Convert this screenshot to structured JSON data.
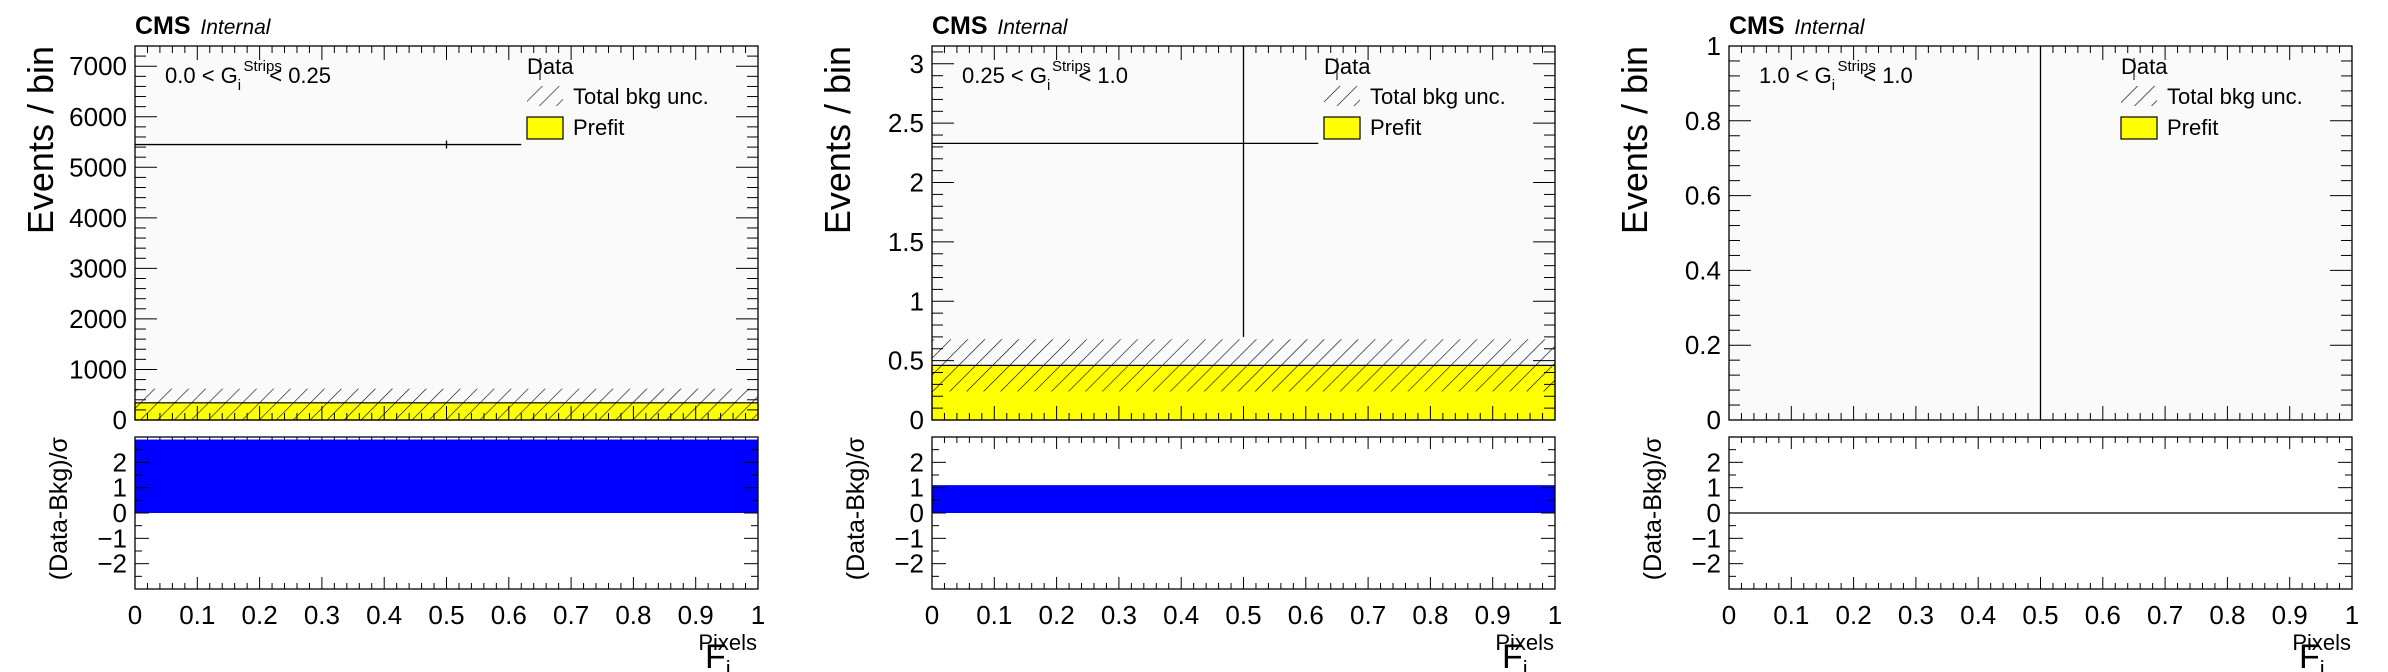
{
  "colors": {
    "prefit_fill": "#ffff00",
    "prefit_line": "#000000",
    "ratio_fill": "#0000ff",
    "frame": "#000000",
    "background": "#ffffff",
    "plot_background": "#fafafa"
  },
  "labels": {
    "cms": "CMS",
    "internal": "Internal",
    "y_main": "Events / bin",
    "y_ratio": "(Data-Bkg)/σ",
    "x_main": "F",
    "x_sub": "i",
    "x_sup": "Pixels",
    "legend_data": "Data",
    "legend_unc": "Total bkg unc.",
    "legend_prefit": "Prefit"
  },
  "chart_data": [
    {
      "type": "bar",
      "region_label": {
        "pre": "0.0 < G",
        "sub": "i",
        "sup": "Strips",
        "post": " < 0.25"
      },
      "x_range": [
        0,
        1
      ],
      "x_ticks": [
        "0",
        "0.1",
        "0.2",
        "0.3",
        "0.4",
        "0.5",
        "0.6",
        "0.7",
        "0.8",
        "0.9",
        "1"
      ],
      "ylim": [
        0,
        7400
      ],
      "y_ticks": [
        "0",
        "1000",
        "2000",
        "3000",
        "4000",
        "5000",
        "6000",
        "7000"
      ],
      "data": {
        "x": 0.5,
        "y": 5450,
        "x_err": [
          0,
          0.62
        ]
      },
      "prefit": {
        "bin": [
          0,
          1
        ],
        "value": 340
      },
      "total_bkg_unc": {
        "low": 0,
        "high": 620
      },
      "ratio": {
        "ylim": [
          -3,
          3
        ],
        "y_ticks": [
          "−2",
          "−1",
          "0",
          "1",
          "2"
        ],
        "value": 2.9,
        "fill": true
      }
    },
    {
      "type": "bar",
      "region_label": {
        "pre": "0.25 < G",
        "sub": "i",
        "sup": "Strips",
        "post": " < 1.0"
      },
      "x_range": [
        0,
        1
      ],
      "x_ticks": [
        "0",
        "0.1",
        "0.2",
        "0.3",
        "0.4",
        "0.5",
        "0.6",
        "0.7",
        "0.8",
        "0.9",
        "1"
      ],
      "ylim": [
        0,
        3.15
      ],
      "y_ticks": [
        "0",
        "0.5",
        "1",
        "1.5",
        "2",
        "2.5",
        "3"
      ],
      "data": {
        "x": 0.5,
        "y": 2.33,
        "x_err": [
          0,
          0.62
        ],
        "y_err": [
          0.7,
          3.15
        ]
      },
      "prefit": {
        "bin": [
          0,
          1
        ],
        "value": 0.46
      },
      "total_bkg_unc": {
        "low": 0.24,
        "high": 0.68
      },
      "ratio": {
        "ylim": [
          -3,
          3
        ],
        "y_ticks": [
          "−2",
          "−1",
          "0",
          "1",
          "2"
        ],
        "value": 1.1,
        "fill": true
      }
    },
    {
      "type": "bar",
      "region_label": {
        "pre": "1.0 < G",
        "sub": "i",
        "sup": "Strips",
        "post": " < 1.0"
      },
      "x_range": [
        0,
        1
      ],
      "x_ticks": [
        "0",
        "0.1",
        "0.2",
        "0.3",
        "0.4",
        "0.5",
        "0.6",
        "0.7",
        "0.8",
        "0.9",
        "1"
      ],
      "ylim": [
        0,
        1
      ],
      "y_ticks": [
        "0",
        "0.2",
        "0.4",
        "0.6",
        "0.8",
        "1"
      ],
      "data": {
        "x": 0.5,
        "y": 0,
        "y_err": [
          0,
          1
        ]
      },
      "prefit": {
        "bin": [
          0,
          1
        ],
        "value": 0
      },
      "total_bkg_unc": {
        "low": 0,
        "high": 0
      },
      "ratio": {
        "ylim": [
          -3,
          3
        ],
        "y_ticks": [
          "−2",
          "−1",
          "0",
          "1",
          "2"
        ],
        "value": 0,
        "fill": false
      }
    }
  ]
}
